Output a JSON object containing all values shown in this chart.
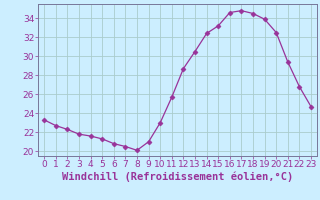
{
  "x": [
    0,
    1,
    2,
    3,
    4,
    5,
    6,
    7,
    8,
    9,
    10,
    11,
    12,
    13,
    14,
    15,
    16,
    17,
    18,
    19,
    20,
    21,
    22,
    23
  ],
  "y": [
    23.3,
    22.7,
    22.3,
    21.8,
    21.6,
    21.3,
    20.8,
    20.5,
    20.1,
    21.0,
    23.0,
    25.7,
    28.7,
    30.5,
    32.4,
    33.2,
    34.6,
    34.8,
    34.5,
    33.9,
    32.5,
    29.4,
    26.8,
    24.7
  ],
  "line_color": "#993399",
  "marker": "D",
  "marker_size": 2.5,
  "background_color": "#cceeff",
  "grid_color": "#aacccc",
  "xlabel": "Windchill (Refroidissement éolien,°C)",
  "xlabel_fontsize": 7.5,
  "ylim": [
    19.5,
    35.5
  ],
  "xlim": [
    -0.5,
    23.5
  ],
  "yticks": [
    20,
    22,
    24,
    26,
    28,
    30,
    32,
    34
  ],
  "xticks": [
    0,
    1,
    2,
    3,
    4,
    5,
    6,
    7,
    8,
    9,
    10,
    11,
    12,
    13,
    14,
    15,
    16,
    17,
    18,
    19,
    20,
    21,
    22,
    23
  ],
  "tick_fontsize": 6.5,
  "tick_color": "#993399",
  "label_color": "#993399",
  "spine_color": "#777799"
}
